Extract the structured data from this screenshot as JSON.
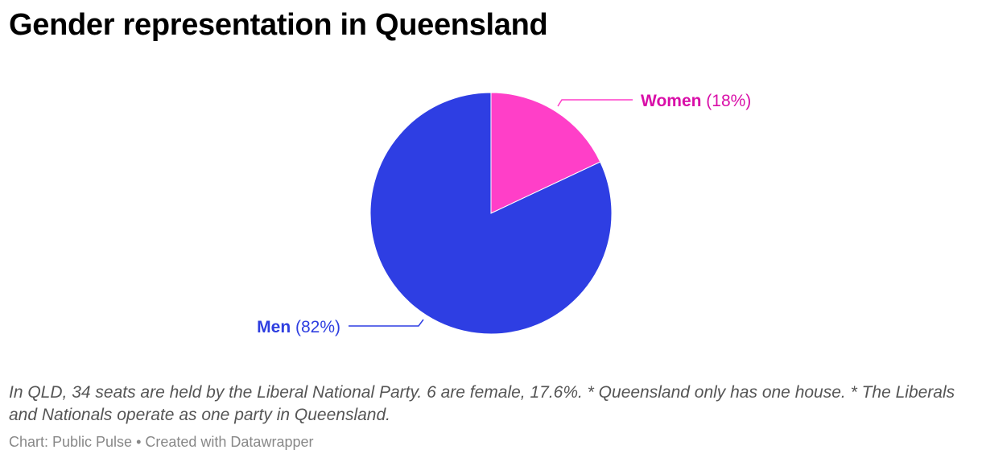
{
  "chart_data": {
    "type": "pie",
    "title": "Gender representation in Queensland",
    "slices": [
      {
        "label": "Women",
        "value": 18,
        "pct_label": "(18%)",
        "color": "#ff3fc8",
        "label_color": "#d90ea8"
      },
      {
        "label": "Men",
        "value": 82,
        "pct_label": "(82%)",
        "color": "#2e3ee3",
        "label_color": "#2e3ee0"
      }
    ],
    "start_angle": "12 o'clock, clockwise"
  },
  "notes": "In QLD, 34 seats are held by the Liberal National Party. 6 are female, 17.6%. * Queensland only has one house. * The Liberals and Nationals operate as one party in Queensland.",
  "credit": "Chart: Public Pulse • Created with Datawrapper"
}
